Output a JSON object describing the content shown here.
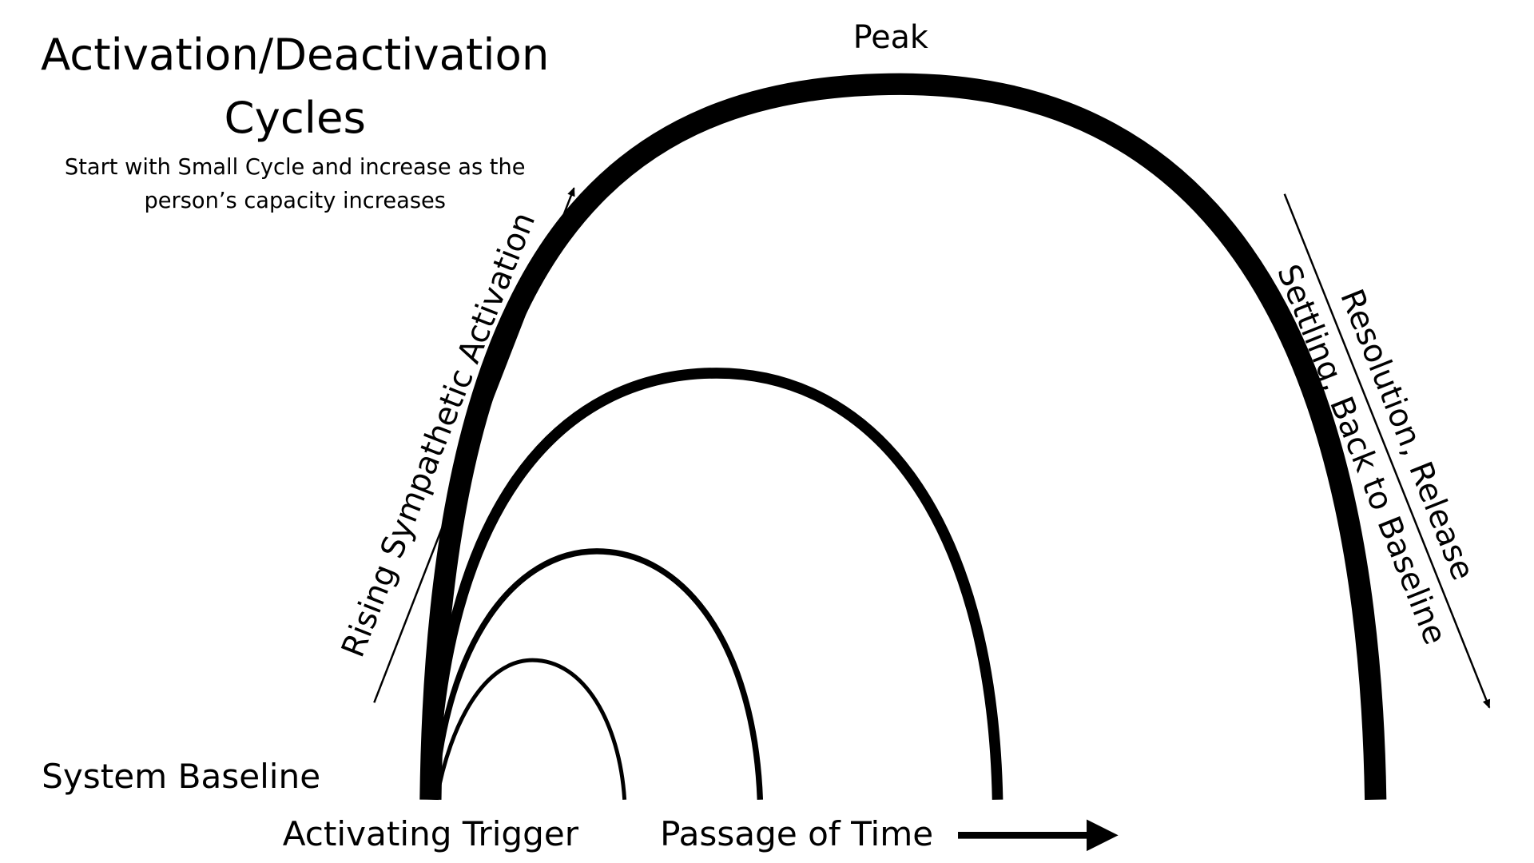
{
  "title": {
    "lines": [
      "Activation/Deactivation",
      "Cycles"
    ]
  },
  "subtitle": {
    "lines": [
      "Start with Small Cycle and increase as the",
      "person’s capacity increases"
    ]
  },
  "labels": {
    "peak": "Peak",
    "baseline": "System Baseline",
    "trigger": "Activating Trigger",
    "time": "Passage of Time",
    "rising": "Rising Sympathetic Activation",
    "resolution": [
      "Resolution, Release",
      "Settling, Back to Baseline"
    ]
  }
}
